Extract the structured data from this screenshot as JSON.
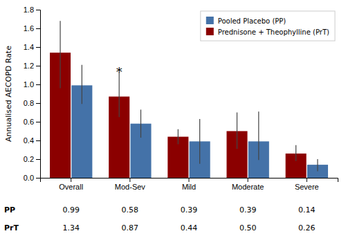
{
  "chart_data": {
    "type": "bar",
    "y_label": "Annualised AECOPD Rate",
    "categories": [
      "Overall",
      "Mod-Sev",
      "Mild",
      "Moderate",
      "Severe"
    ],
    "series": [
      {
        "name": "Pooled Placebo (PP)",
        "color": "#4472a8",
        "values": [
          0.99,
          0.58,
          0.39,
          0.39,
          0.14
        ],
        "errors_low": [
          0.2,
          0.15,
          0.24,
          0.2,
          0.07
        ],
        "errors_high": [
          0.22,
          0.15,
          0.24,
          0.32,
          0.06
        ]
      },
      {
        "name": "Prednisone + Theophylline (PrT)",
        "color": "#8b0000",
        "values": [
          1.34,
          0.87,
          0.44,
          0.5,
          0.26
        ],
        "errors_low": [
          0.38,
          0.22,
          0.08,
          0.19,
          0.08
        ],
        "errors_high": [
          0.34,
          0.26,
          0.08,
          0.2,
          0.09
        ]
      }
    ],
    "ylim": [
      0.0,
      1.8
    ],
    "yticks": [
      {
        "value": 0,
        "label": "0.0"
      },
      0.2,
      0.4,
      0.6,
      0.8,
      {
        "value": 1,
        "label": "1.0"
      },
      1.2,
      1.4,
      1.6,
      1.8
    ],
    "grid": false,
    "legend": "upper right",
    "annotations": [
      {
        "text": "*",
        "category": "Mod-Sev",
        "series": "Prednisone + Theophylline (PrT)"
      }
    ],
    "table": {
      "rows": [
        {
          "label": "PP",
          "values": [
            0.99,
            0.58,
            0.39,
            0.39,
            0.14
          ],
          "value_labels": [
            "0.99",
            "0.58",
            "0.39",
            "0.39",
            "0.14"
          ]
        },
        {
          "label": "PrT",
          "values": [
            1.34,
            0.87,
            0.44,
            0.5,
            0.26
          ],
          "value_labels": [
            "1.34",
            "0.87",
            "0.44",
            "0.50",
            "0.26"
          ]
        }
      ]
    }
  }
}
